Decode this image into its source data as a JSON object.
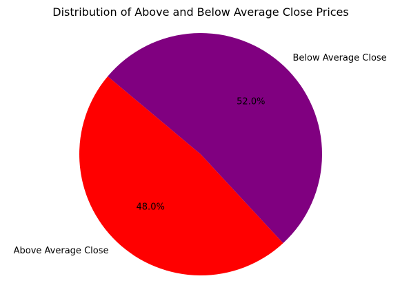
{
  "chart_data": {
    "type": "pie",
    "title": "Distribution of Above and Below Average Close Prices",
    "start_angle_deg": 140,
    "counterclock": true,
    "labels": [
      "Above Average Close",
      "Below Average Close"
    ],
    "values": [
      48.0,
      52.0
    ],
    "percent_labels": [
      "48.0%",
      "52.0%"
    ],
    "colors": [
      "#ff0000",
      "#800080"
    ],
    "legend": "none",
    "grid": false
  }
}
